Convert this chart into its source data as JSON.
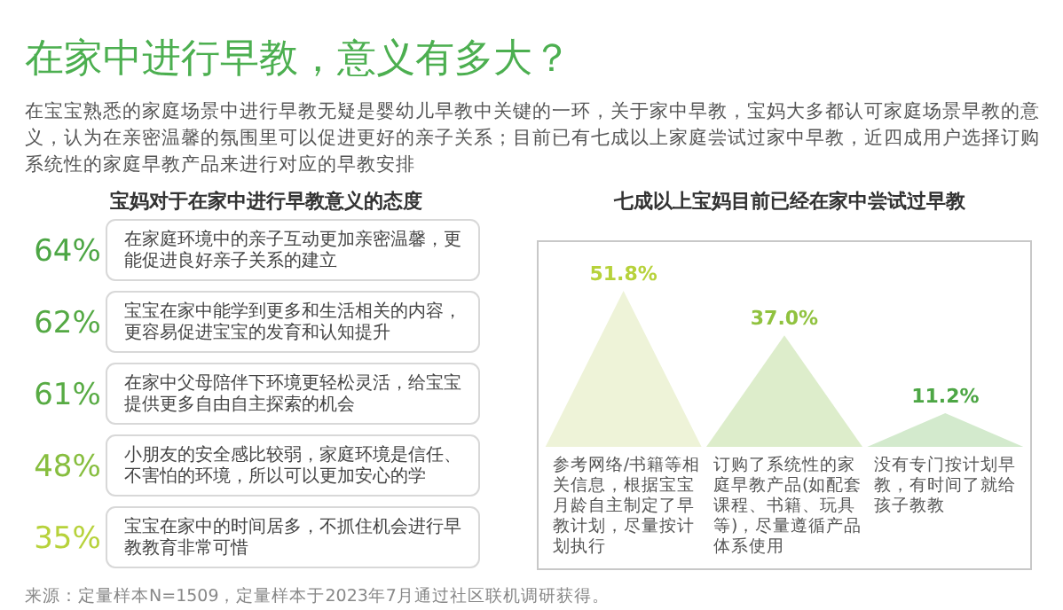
{
  "chart_data": [
    {
      "type": "other",
      "title": "在家中进行早教，意义有多大？",
      "subtitle": "在宝宝熟悉的家庭场景中进行早教无疑是婴幼儿早教中关键的一环，关于家中早教，宝妈大多都认可家庭场景早教的意义，认为在亲密温馨的氛围里可以促进更好的亲子关系；目前已有七成以上家庭尝试过家中早教，近四成用户选择订购系统性的家庭早教产品来进行对应的早教安排",
      "annotations": [
        "来源：定量样本N=1509，定量样本于2023年7月通过社区联机调研获得。"
      ]
    },
    {
      "type": "other",
      "title": "宝妈对于在家中进行早教意义的态度",
      "categories": [
        "在家庭环境中的亲子互动更加亲密温馨，更能促进良好亲子关系的建立",
        "宝宝在家中能学到更多和生活相关的内容，更容易促进宝宝的发育和认知提升",
        "在家中父母陪伴下环境更轻松灵活，给宝宝提供更多自由自主探索的机会",
        "小朋友的安全感比较弱，家庭环境是信任、不害怕的环境，所以可以更加安心的学",
        "宝宝在家中的时间居多，不抓住机会进行早教教育非常可惜"
      ],
      "values": [
        64,
        62,
        61,
        48,
        35
      ],
      "value_labels": [
        "64%",
        "62%",
        "61%",
        "48%",
        "35%"
      ]
    },
    {
      "type": "other",
      "title": "七成以上宝妈目前已经在家中尝试过早教",
      "categories": [
        "参考网络/书籍等相关信息，根据宝宝月龄自主制定了早教计划，尽量按计划执行",
        "订购了系统性的家庭早教产品(如配套课程、书籍、玩具等)，尽量遵循产品体系使用",
        "没有专门按计划早教，有时间了就给孩子教教"
      ],
      "values": [
        51.8,
        37.0,
        11.2
      ],
      "value_labels": [
        "51.8%",
        "37.0%",
        "11.2%"
      ],
      "colors": [
        "#eef3d8",
        "#ddedcb",
        "#d3eacd"
      ]
    }
  ]
}
